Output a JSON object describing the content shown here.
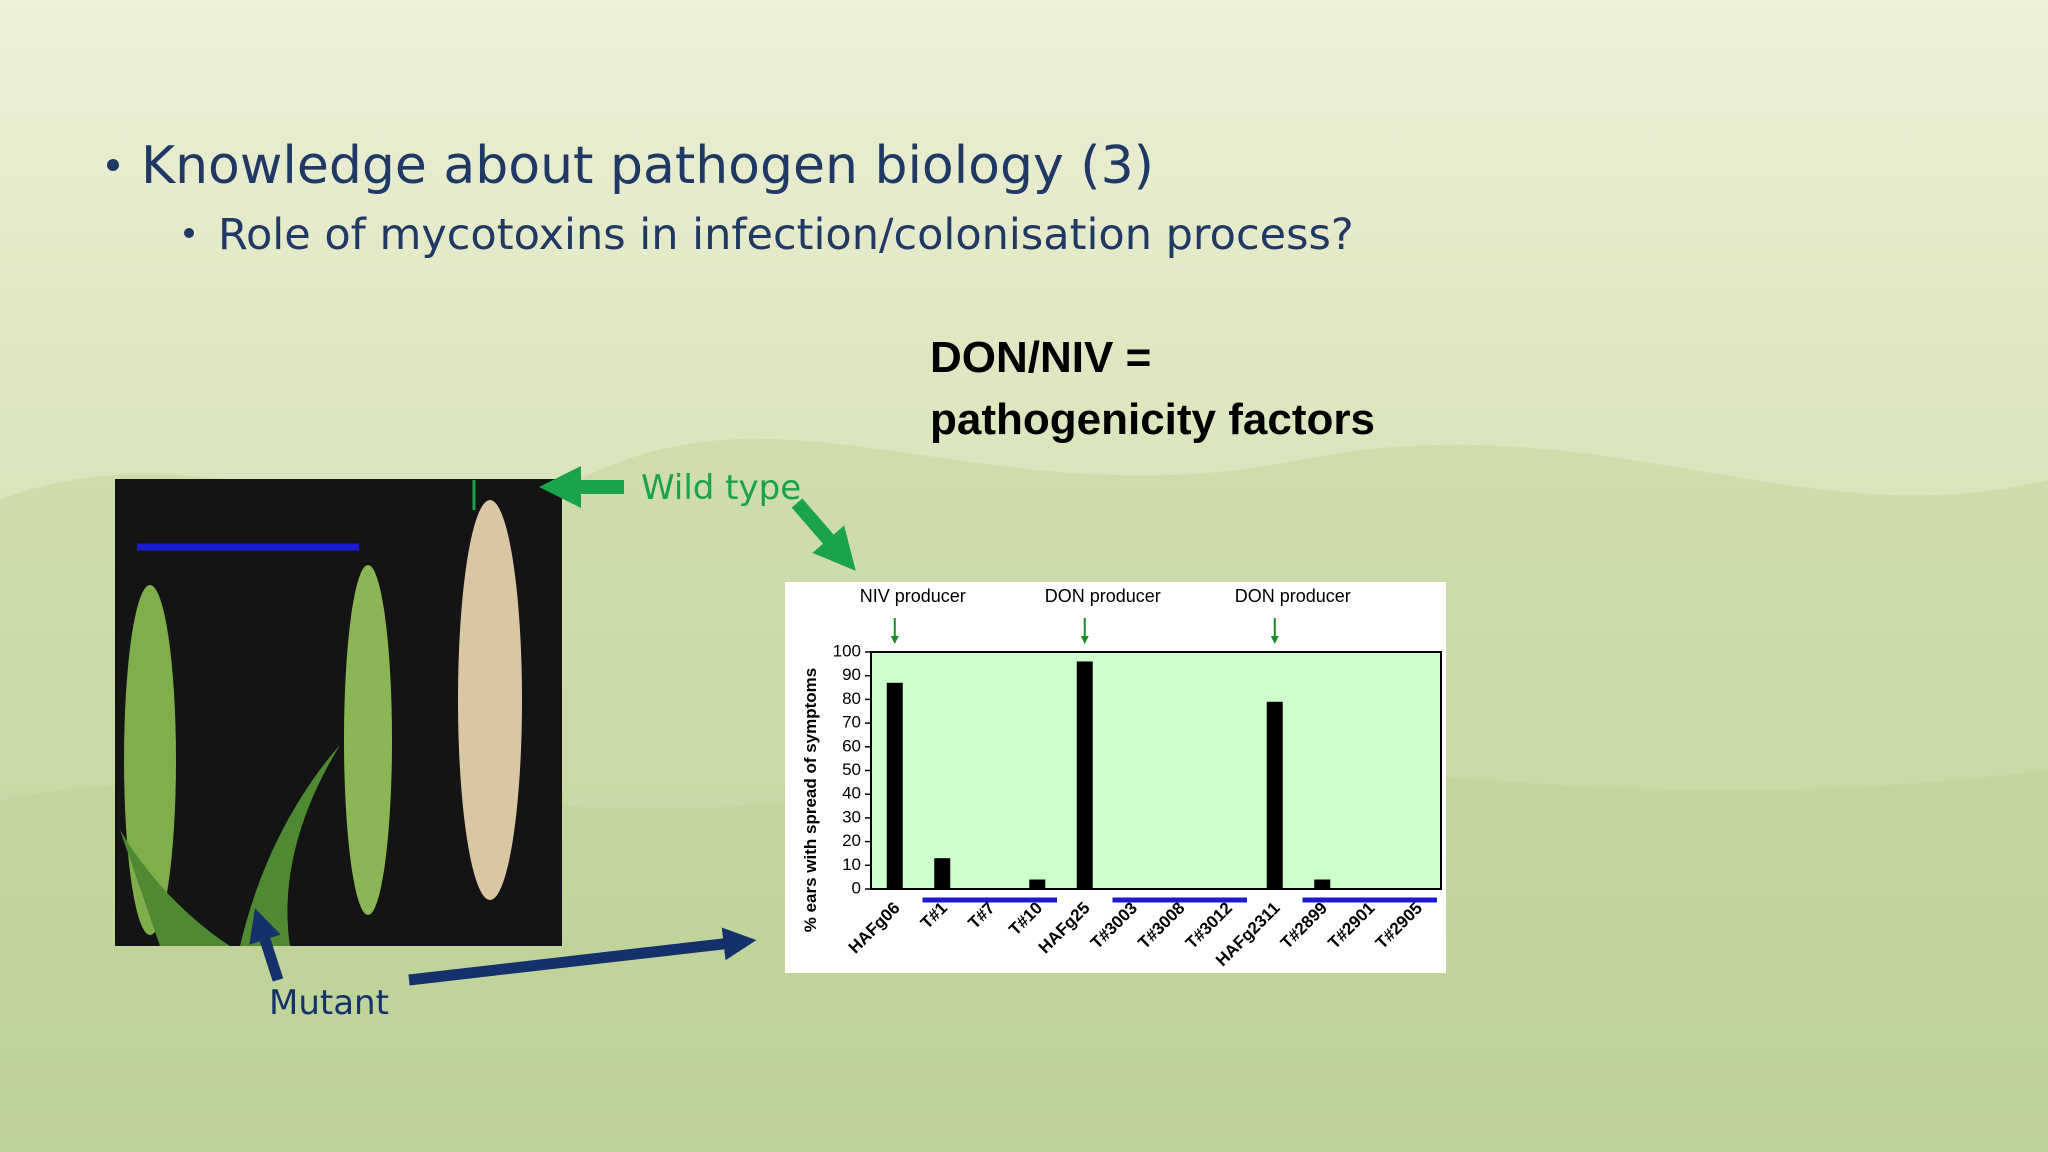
{
  "slide": {
    "bullets": [
      "Knowledge about pathogen biology (3)",
      "Role of mycotoxins in infection/colonisation process?"
    ],
    "callout": [
      "DON/NIV =",
      "pathogenicity factors"
    ],
    "photo_labels": {
      "wild_type": "Wild type",
      "mutant": "Mutant"
    }
  },
  "chart_data": {
    "type": "bar",
    "annotations": [
      "NIV producer",
      "DON producer",
      "DON producer"
    ],
    "y_label": "% ears with spread of symptoms",
    "categories": [
      "HAFg06",
      "T#1",
      "T#7",
      "T#10",
      "HAFg25",
      "T#3003",
      "T#3008",
      "T#3012",
      "HAFg2311",
      "T#2899",
      "T#2901",
      "T#2905"
    ],
    "values": [
      87,
      13,
      0,
      4,
      96,
      0,
      0,
      0,
      79,
      4,
      0,
      0
    ],
    "color": "#000000",
    "ylim": [
      0,
      100
    ],
    "yticks": [
      0,
      10,
      20,
      30,
      40,
      50,
      60,
      70,
      80,
      90,
      100
    ]
  }
}
